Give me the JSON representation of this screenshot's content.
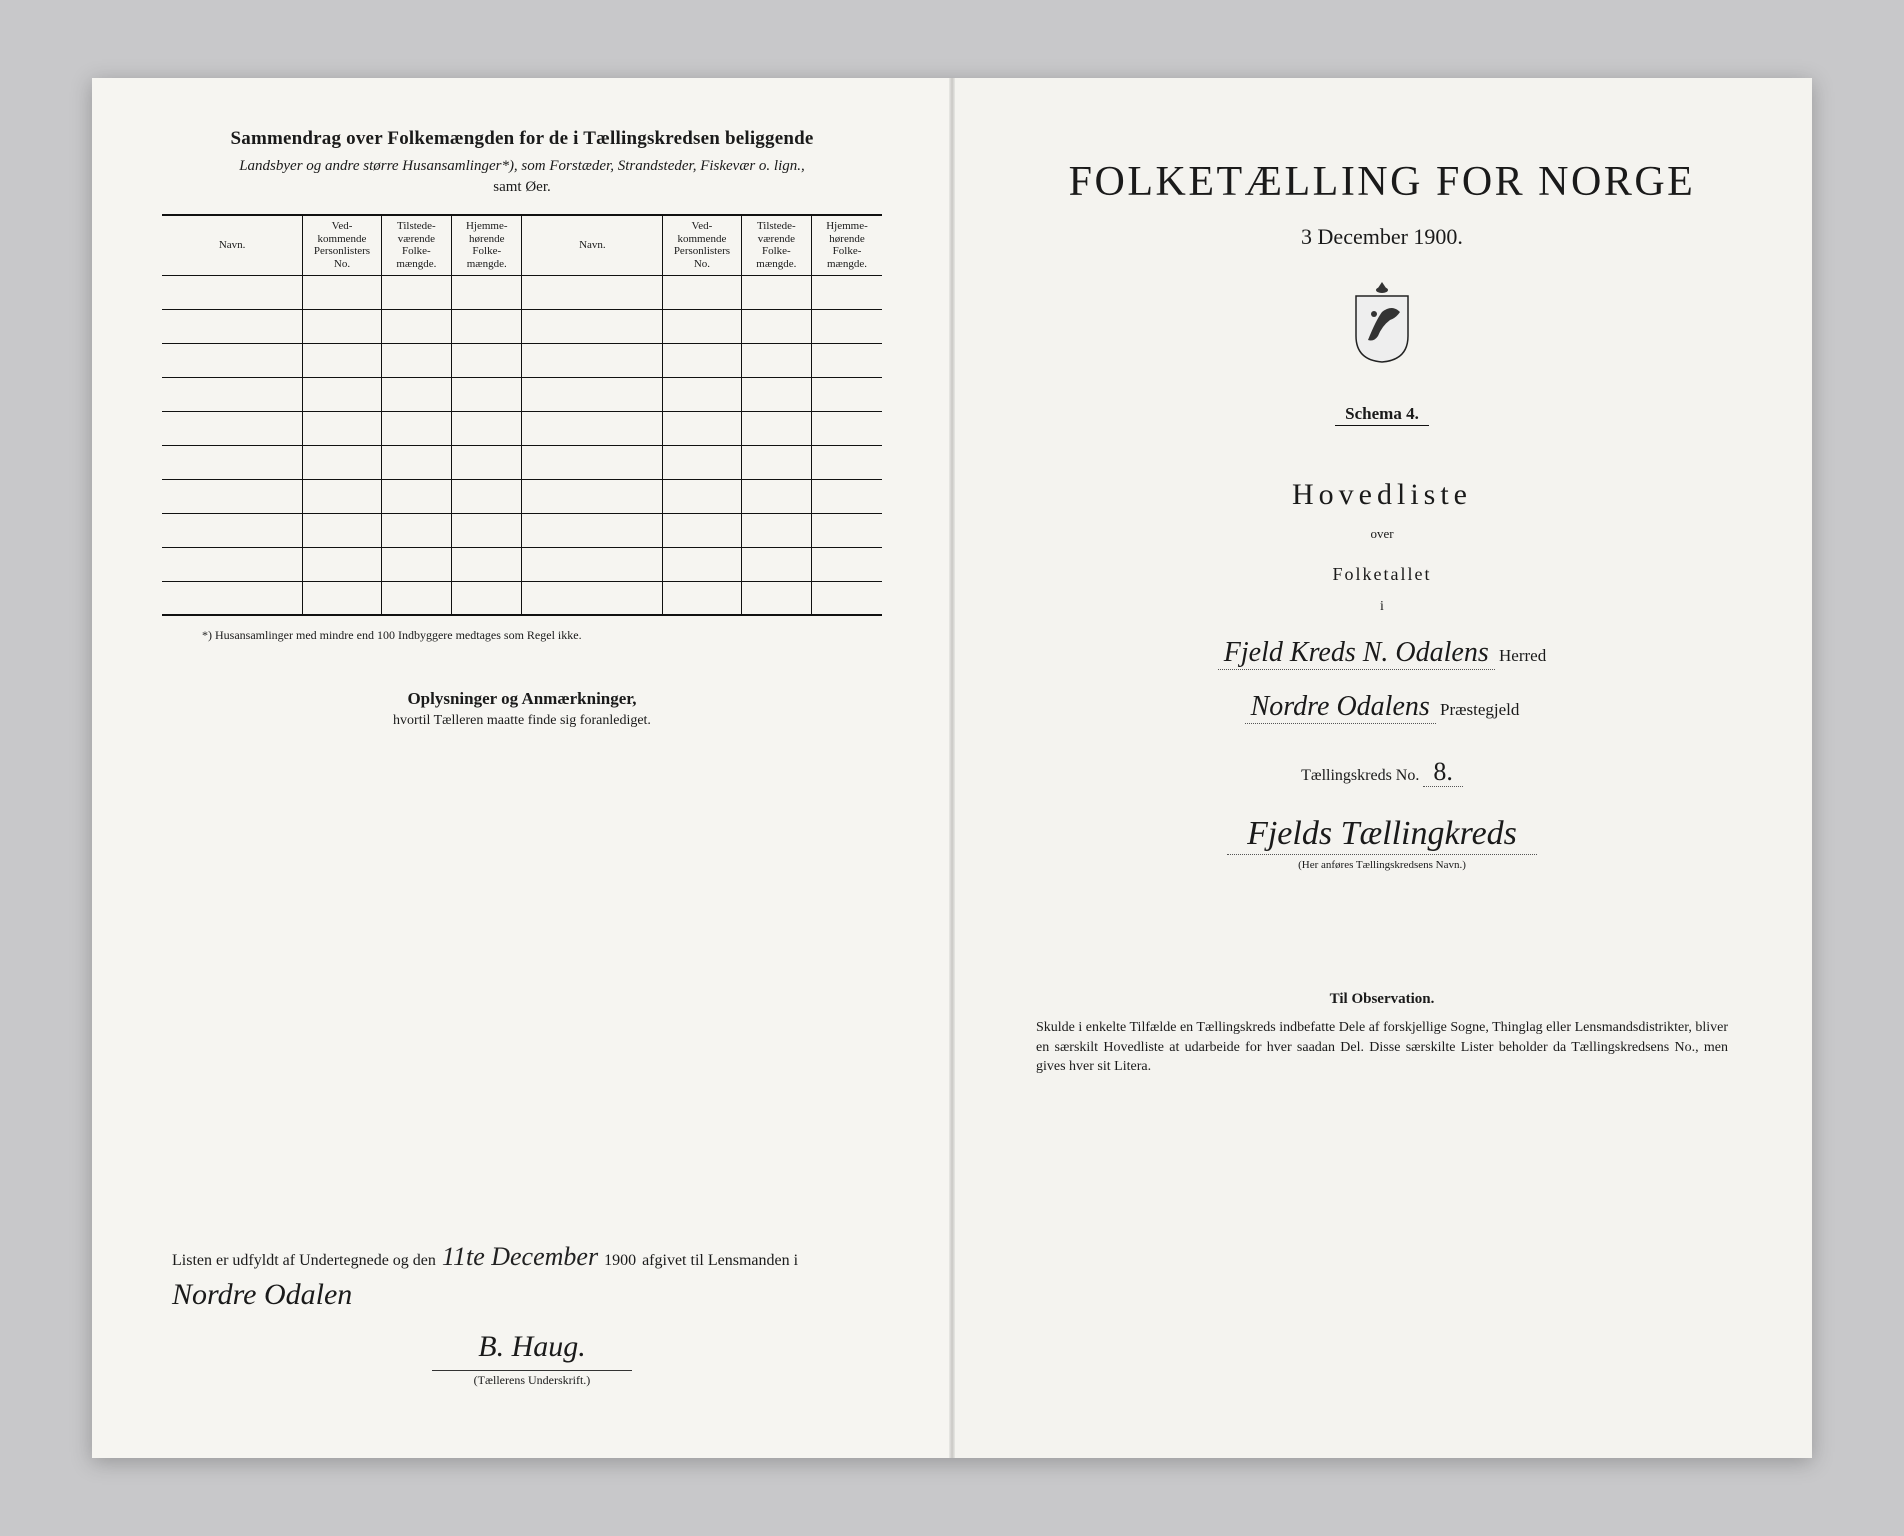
{
  "left": {
    "title": "Sammendrag over Folkemængden for de i Tællingskredsen beliggende",
    "sub": "Landsbyer og andre større Husansamlinger*), som Forstæder, Strandsteder, Fiskevær o. lign.,",
    "sub2": "samt Øer.",
    "columns": {
      "navn": "Navn.",
      "vedk": "Ved-\nkommende\nPersonlisters\nNo.",
      "tilst": "Tilstede-\nværende\nFolke-\nmængde.",
      "hjem": "Hjemme-\nhørende\nFolke-\nmængde."
    },
    "row_count": 10,
    "footnote": "*) Husansamlinger med mindre end 100 Indbyggere medtages som Regel ikke.",
    "oplys_head": "Oplysninger og Anmærkninger,",
    "oplys_sub": "hvortil Tælleren maatte finde sig foranlediget.",
    "sig_pre": "Listen er udfyldt af Undertegnede og den",
    "sig_date": "11te December",
    "sig_year": "1900",
    "sig_mid": "afgivet til Lensmanden i",
    "sig_place": "Nordre Odalen",
    "sig_name": "B. Haug.",
    "sig_caption": "(Tællerens Underskrift.)"
  },
  "right": {
    "title": "FOLKETÆLLING FOR NORGE",
    "date": "3 December 1900.",
    "schema": "Schema 4.",
    "hoved": "Hovedliste",
    "over": "over",
    "folket": "Folketallet",
    "lil_i": "i",
    "herred_hw": "Fjeld Kreds N. Odalens",
    "herred_lbl": "Herred",
    "praeste_hw": "Nordre Odalens",
    "praeste_lbl": "Præstegjeld",
    "kreds_lbl": "Tællingskreds No.",
    "kreds_no": "8.",
    "kreds_name": "Fjelds Tællingkreds",
    "kreds_caption": "(Her anføres Tællingskredsens Navn.)",
    "obs_head": "Til Observation.",
    "obs_text": "Skulde i enkelte Tilfælde en Tællingskreds indbefatte Dele af forskjellige Sogne, Thinglag eller Lensmandsdistrikter, bliver en særskilt Hovedliste at udarbeide for hver saadan Del. Disse særskilte Lister beholder da Tællingskredsens No., men gives hver sit Litera."
  },
  "style": {
    "bg": "#c8c8ca",
    "paper": "#f5f4f0",
    "ink": "#1a1a1a"
  }
}
